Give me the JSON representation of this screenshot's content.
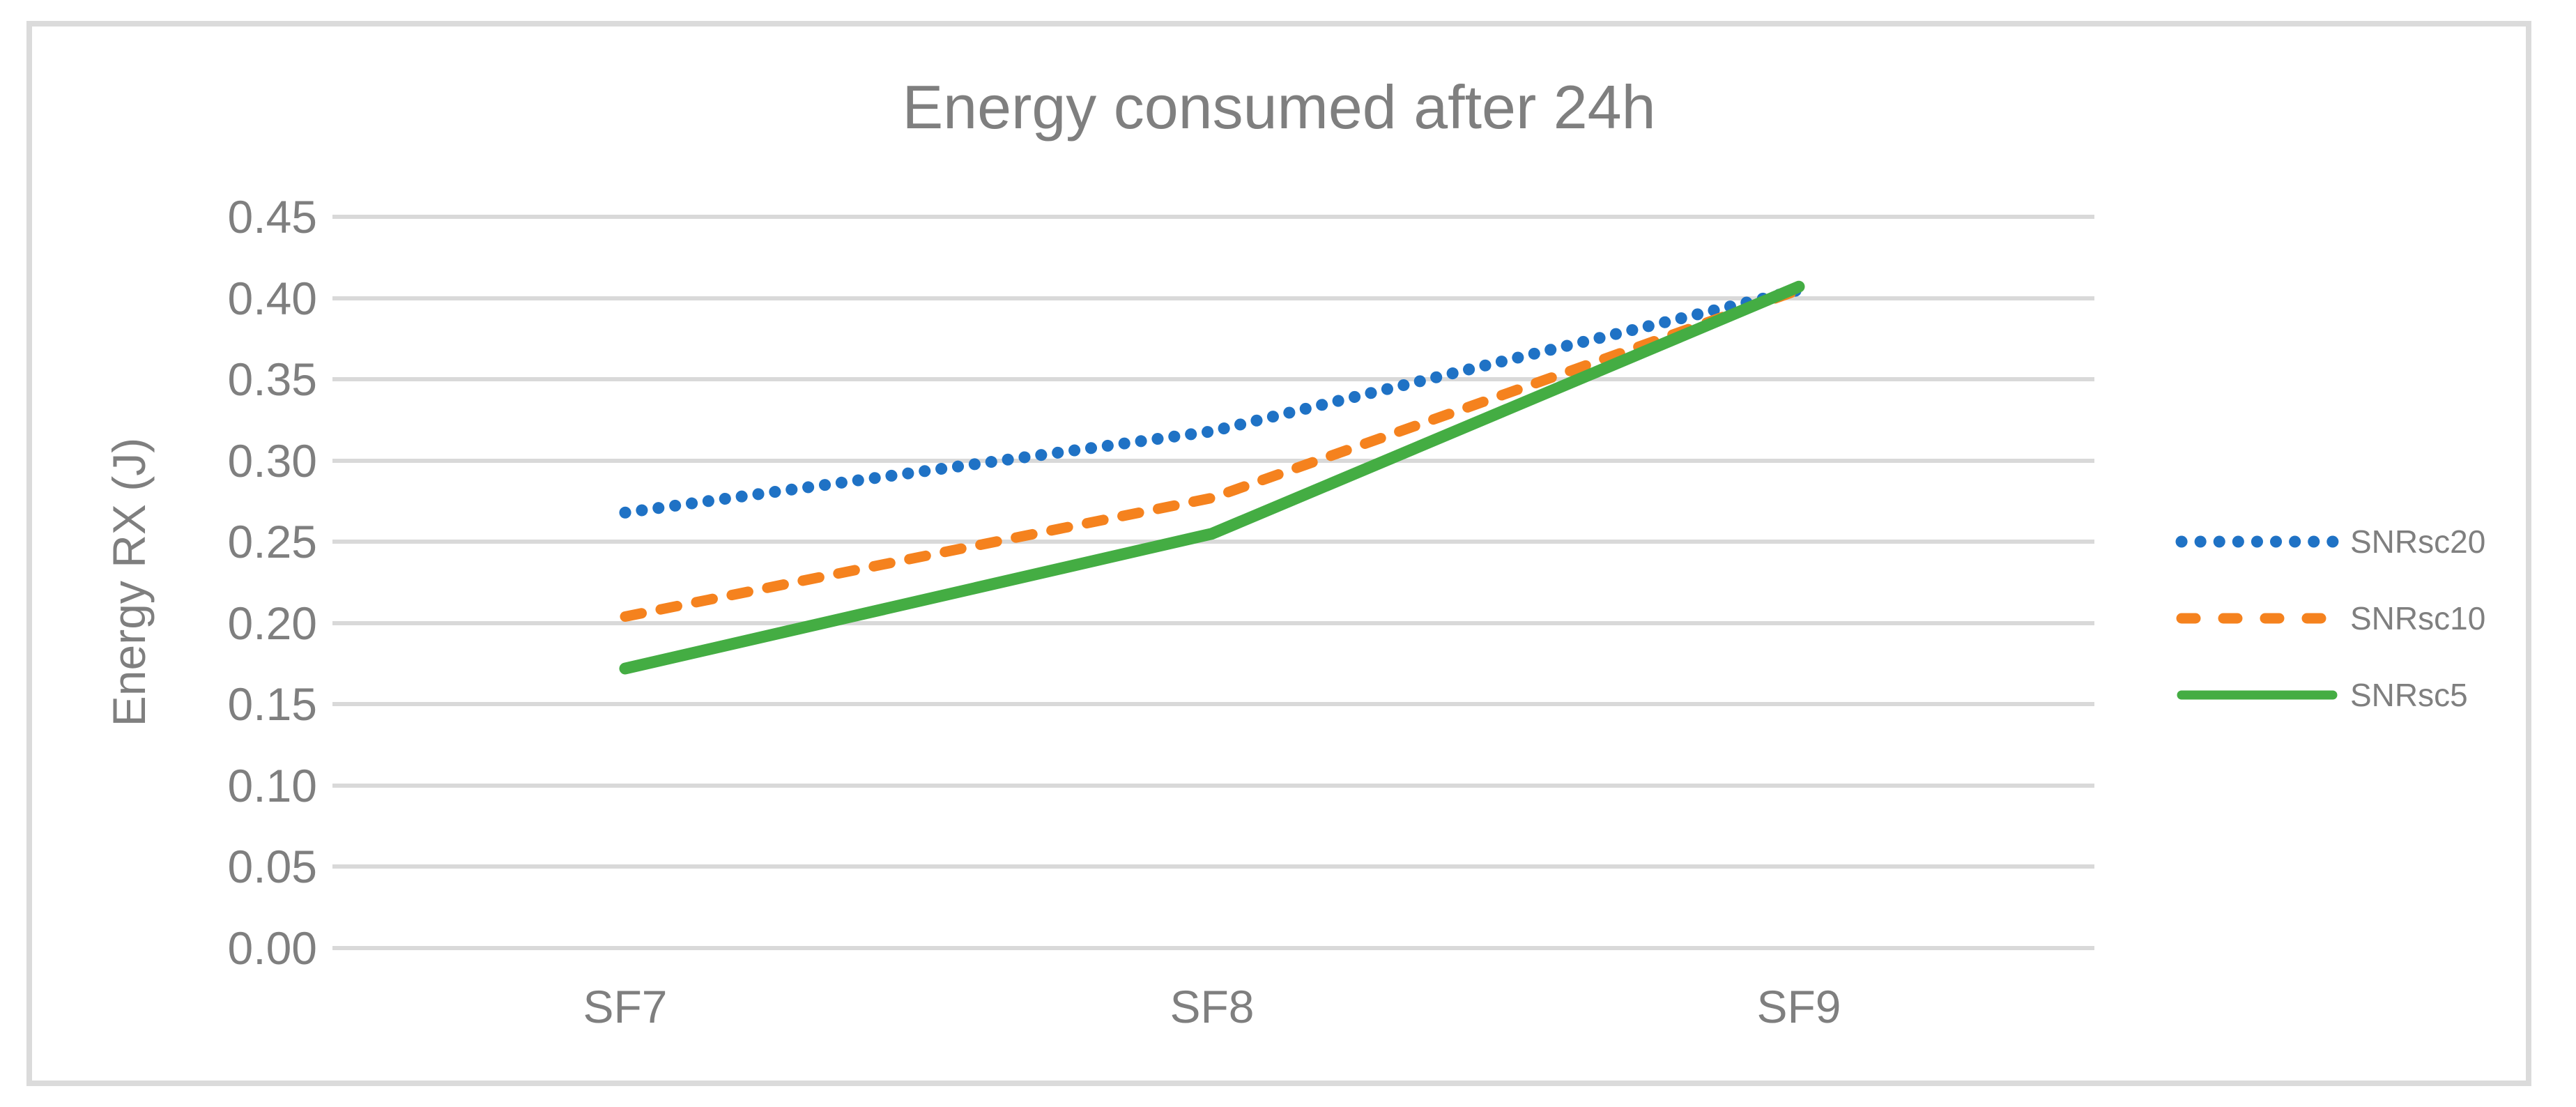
{
  "figure": {
    "background_color": "#FFFFFF",
    "frame_color": "#DBDBDB"
  },
  "chart_data": {
    "type": "line",
    "title": "Energy consumed after 24h",
    "categories": [
      "SF7",
      "SF8",
      "SF9"
    ],
    "series": [
      {
        "name": "SNRsc20",
        "values": [
          0.268,
          0.318,
          0.405
        ],
        "color": "#1F72C5",
        "style": "dotted"
      },
      {
        "name": "SNRsc10",
        "values": [
          0.204,
          0.277,
          0.405
        ],
        "color": "#F5821E",
        "style": "dashed"
      },
      {
        "name": "SNRsc5",
        "values": [
          0.172,
          0.255,
          0.407
        ],
        "color": "#44AD43",
        "style": "solid"
      }
    ],
    "xlabel": "",
    "ylabel": "Energy RX (J)",
    "ylim": [
      0.0,
      0.45
    ],
    "ytick_step": 0.05,
    "ytick_labels": [
      "0.00",
      "0.05",
      "0.10",
      "0.15",
      "0.20",
      "0.25",
      "0.30",
      "0.35",
      "0.40",
      "0.45"
    ],
    "grid": "horizontal",
    "grid_color": "#D9D9D9",
    "legend_position": "right",
    "text_color": "#7F7F7F"
  }
}
